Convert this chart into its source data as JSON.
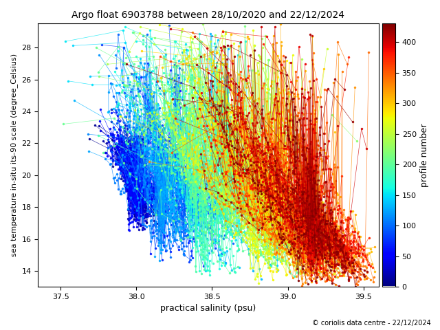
{
  "title": "Argo float 6903788 between 28/10/2020 and 22/12/2024",
  "xlabel": "practical salinity (psu)",
  "ylabel": "sea temperature in-situ its-90 scale (degree_Celsius)",
  "colorbar_label": "profile number",
  "cbar_ticks": [
    0,
    50,
    100,
    150,
    200,
    250,
    300,
    350,
    400
  ],
  "xlim": [
    37.35,
    39.6
  ],
  "ylim": [
    13.0,
    29.5
  ],
  "xticks": [
    37.5,
    38.0,
    38.5,
    39.0,
    39.5
  ],
  "yticks": [
    14,
    16,
    18,
    20,
    22,
    24,
    26,
    28
  ],
  "n_profiles": 430,
  "copyright_text": "© coriolis data centre - 22/12/2024",
  "cmap": "jet",
  "vmin": 1,
  "vmax": 430,
  "figwidth": 6.4,
  "figheight": 4.8,
  "dpi": 100
}
